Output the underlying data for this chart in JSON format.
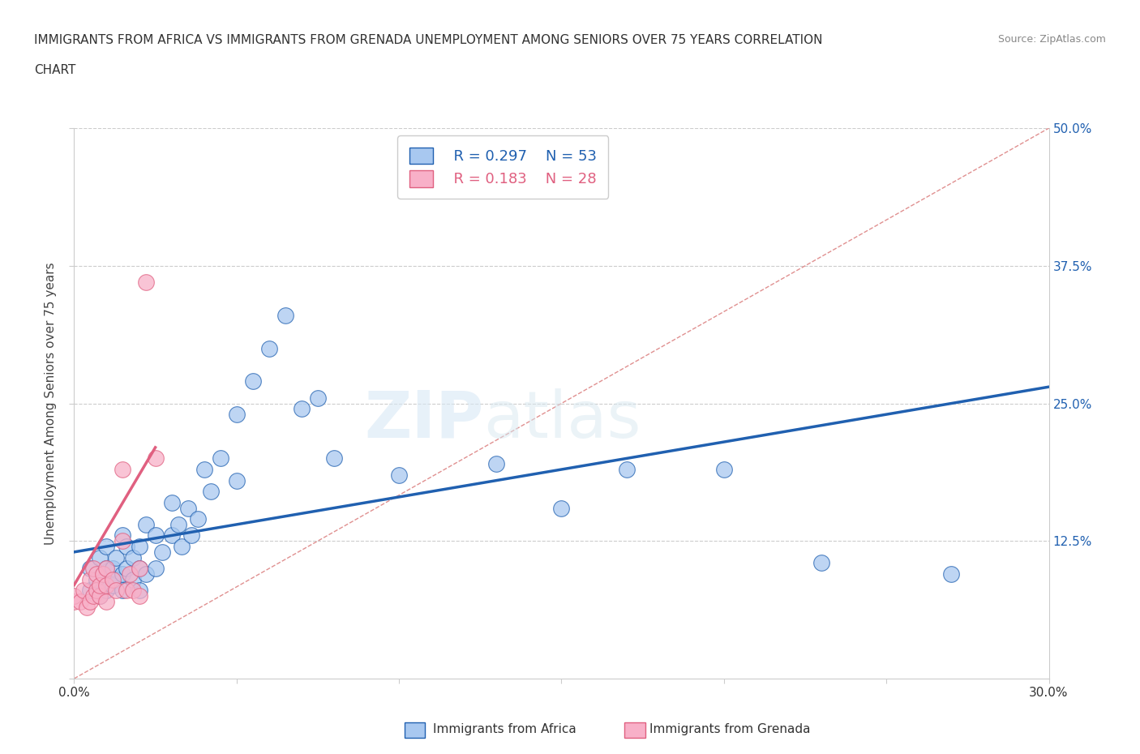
{
  "title_line1": "IMMIGRANTS FROM AFRICA VS IMMIGRANTS FROM GRENADA UNEMPLOYMENT AMONG SENIORS OVER 75 YEARS CORRELATION",
  "title_line2": "CHART",
  "source_text": "Source: ZipAtlas.com",
  "ylabel": "Unemployment Among Seniors over 75 years",
  "xmin": 0.0,
  "xmax": 0.3,
  "ymin": 0.0,
  "ymax": 0.5,
  "xticks": [
    0.0,
    0.05,
    0.1,
    0.15,
    0.2,
    0.25,
    0.3
  ],
  "xtick_labels": [
    "0.0%",
    "",
    "",
    "",
    "",
    "",
    "30.0%"
  ],
  "yticks": [
    0.0,
    0.125,
    0.25,
    0.375,
    0.5
  ],
  "ytick_labels": [
    "",
    "12.5%",
    "25.0%",
    "37.5%",
    "50.0%"
  ],
  "watermark": "ZIPatlas",
  "legend_r_africa": "R = 0.297",
  "legend_n_africa": "N = 53",
  "legend_r_grenada": "R = 0.183",
  "legend_n_grenada": "N = 28",
  "color_africa": "#a8c8f0",
  "color_africa_line": "#2060b0",
  "color_grenada": "#f8b0c8",
  "color_grenada_line": "#e06080",
  "diag_line_color": "#e09090",
  "africa_scatter_x": [
    0.005,
    0.005,
    0.007,
    0.008,
    0.008,
    0.009,
    0.01,
    0.01,
    0.01,
    0.012,
    0.012,
    0.013,
    0.013,
    0.015,
    0.015,
    0.015,
    0.016,
    0.016,
    0.018,
    0.018,
    0.02,
    0.02,
    0.02,
    0.022,
    0.022,
    0.025,
    0.025,
    0.027,
    0.03,
    0.03,
    0.032,
    0.033,
    0.035,
    0.036,
    0.038,
    0.04,
    0.042,
    0.045,
    0.05,
    0.05,
    0.055,
    0.06,
    0.065,
    0.07,
    0.075,
    0.08,
    0.1,
    0.13,
    0.15,
    0.17,
    0.2,
    0.23,
    0.27
  ],
  "africa_scatter_y": [
    0.08,
    0.1,
    0.09,
    0.075,
    0.11,
    0.095,
    0.08,
    0.1,
    0.12,
    0.1,
    0.085,
    0.09,
    0.11,
    0.08,
    0.095,
    0.13,
    0.1,
    0.12,
    0.09,
    0.11,
    0.1,
    0.08,
    0.12,
    0.095,
    0.14,
    0.1,
    0.13,
    0.115,
    0.13,
    0.16,
    0.14,
    0.12,
    0.155,
    0.13,
    0.145,
    0.19,
    0.17,
    0.2,
    0.18,
    0.24,
    0.27,
    0.3,
    0.33,
    0.245,
    0.255,
    0.2,
    0.185,
    0.195,
    0.155,
    0.19,
    0.19,
    0.105,
    0.095
  ],
  "grenada_scatter_x": [
    0.0,
    0.0,
    0.002,
    0.003,
    0.004,
    0.005,
    0.005,
    0.006,
    0.006,
    0.007,
    0.007,
    0.008,
    0.008,
    0.009,
    0.01,
    0.01,
    0.01,
    0.012,
    0.013,
    0.015,
    0.015,
    0.016,
    0.017,
    0.018,
    0.02,
    0.02,
    0.022,
    0.025
  ],
  "grenada_scatter_y": [
    0.07,
    0.075,
    0.07,
    0.08,
    0.065,
    0.07,
    0.09,
    0.075,
    0.1,
    0.08,
    0.095,
    0.075,
    0.085,
    0.095,
    0.07,
    0.085,
    0.1,
    0.09,
    0.08,
    0.125,
    0.19,
    0.08,
    0.095,
    0.08,
    0.075,
    0.1,
    0.36,
    0.2
  ],
  "africa_line_x": [
    0.0,
    0.3
  ],
  "africa_line_y": [
    0.115,
    0.265
  ],
  "grenada_line_x": [
    0.0,
    0.025
  ],
  "grenada_line_y": [
    0.085,
    0.21
  ]
}
